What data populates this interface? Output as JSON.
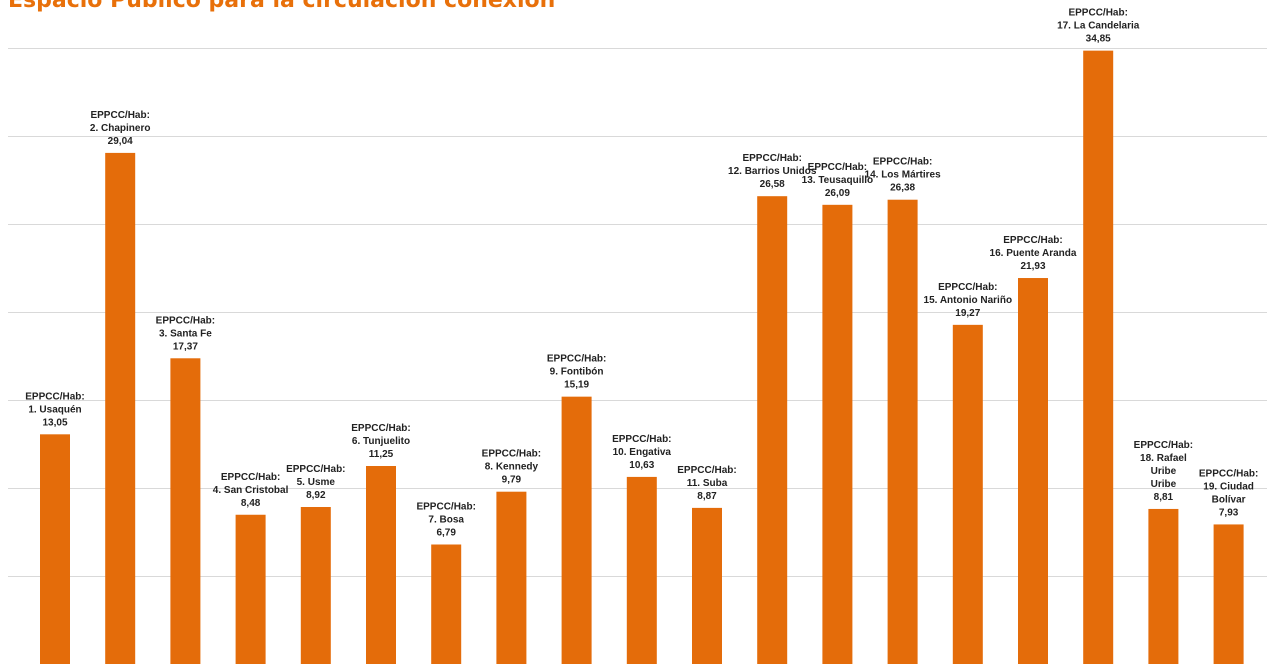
{
  "chart_data": {
    "type": "bar",
    "title": "Espacio Público para la circulación conexión",
    "xlabel": "",
    "ylabel": "",
    "ylim": [
      0,
      35
    ],
    "grid_step": 5,
    "grid": true,
    "bar_color": "#e46c0a",
    "title_color": "#e8700a",
    "grid_color": "#d9d9d9",
    "categories": [
      "1. Usaquén",
      "2. Chapinero",
      "3. Santa Fe",
      "4. San Cristobal",
      "5. Usme",
      "6. Tunjuelito",
      "7. Bosa",
      "8. Kennedy",
      "9. Fontibón",
      "10. Engativa",
      "11. Suba",
      "12. Barrios Unidos",
      "13. Teusaquillo",
      "14. Los Mártires",
      "15. Antonio Nariño",
      "16. Puente Aranda",
      "17. La Candelaria",
      "18. Rafael Uribe Uribe",
      "19. Ciudad Bolívar"
    ],
    "values": [
      13.05,
      29.04,
      17.37,
      8.48,
      8.92,
      11.25,
      6.79,
      9.79,
      15.19,
      10.63,
      8.87,
      26.58,
      26.09,
      26.38,
      19.27,
      21.93,
      34.85,
      8.81,
      7.93
    ],
    "labels": [
      [
        "EPPCC/Hab:",
        "1. Usaquén",
        "13,05"
      ],
      [
        "EPPCC/Hab:",
        "2. Chapinero",
        "29,04"
      ],
      [
        "EPPCC/Hab:",
        "3. Santa Fe",
        "17,37"
      ],
      [
        "EPPCC/Hab:",
        "4. San Cristobal",
        "8,48"
      ],
      [
        "EPPCC/Hab:",
        "5. Usme",
        "8,92"
      ],
      [
        "EPPCC/Hab:",
        "6. Tunjuelito",
        "11,25"
      ],
      [
        "EPPCC/Hab:",
        "7. Bosa",
        "6,79"
      ],
      [
        "EPPCC/Hab:",
        "8. Kennedy",
        "9,79"
      ],
      [
        "EPPCC/Hab:",
        "9. Fontibón",
        "15,19"
      ],
      [
        "EPPCC/Hab:",
        "10. Engativa",
        "10,63"
      ],
      [
        "EPPCC/Hab:",
        "11. Suba",
        "8,87"
      ],
      [
        "EPPCC/Hab:",
        "12. Barrios Unidos",
        "26,58"
      ],
      [
        "EPPCC/Hab:",
        "13. Teusaquillo",
        "26,09"
      ],
      [
        "EPPCC/Hab:",
        "14. Los Mártires",
        "26,38"
      ],
      [
        "EPPCC/Hab:",
        "15. Antonio Nariño",
        "19,27"
      ],
      [
        "EPPCC/Hab:",
        "16. Puente Aranda",
        "21,93"
      ],
      [
        "EPPCC/Hab:",
        "17. La Candelaria",
        "34,85"
      ],
      [
        "EPPCC/Hab:",
        "18. Rafael",
        "Uribe",
        "Uribe",
        "8,81"
      ],
      [
        "EPPCC/Hab:",
        "19. Ciudad",
        "Bolívar",
        "7,93"
      ]
    ]
  }
}
